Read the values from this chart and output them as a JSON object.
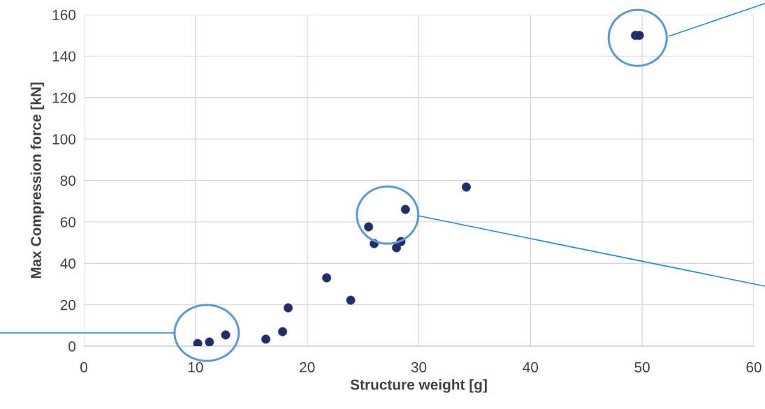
{
  "chart_data": {
    "type": "scatter",
    "xlabel": "Structure weight [g]",
    "ylabel": "Max Compression force [kN]",
    "x": [
      10.2,
      11.25,
      12.7,
      16.3,
      17.8,
      18.3,
      21.75,
      23.9,
      25.5,
      26,
      28,
      28.4,
      28.8,
      34.25,
      49.4,
      49.75
    ],
    "series": [
      {
        "color": "#1f2d6b",
        "values": [
          1.3,
          2,
          5.4,
          3.4,
          7,
          18.5,
          33,
          22.2,
          57.6,
          49.5,
          47.5,
          50.5,
          66,
          76.8,
          150,
          150
        ]
      }
    ],
    "xlim": [
      0,
      60
    ],
    "xticks": [
      0,
      10,
      20,
      30,
      40,
      50,
      60
    ],
    "ylim": [
      0,
      160
    ],
    "yticks": [
      0,
      20,
      40,
      60,
      80,
      100,
      120,
      140,
      160
    ],
    "grid": true,
    "marker": "circle"
  }
}
